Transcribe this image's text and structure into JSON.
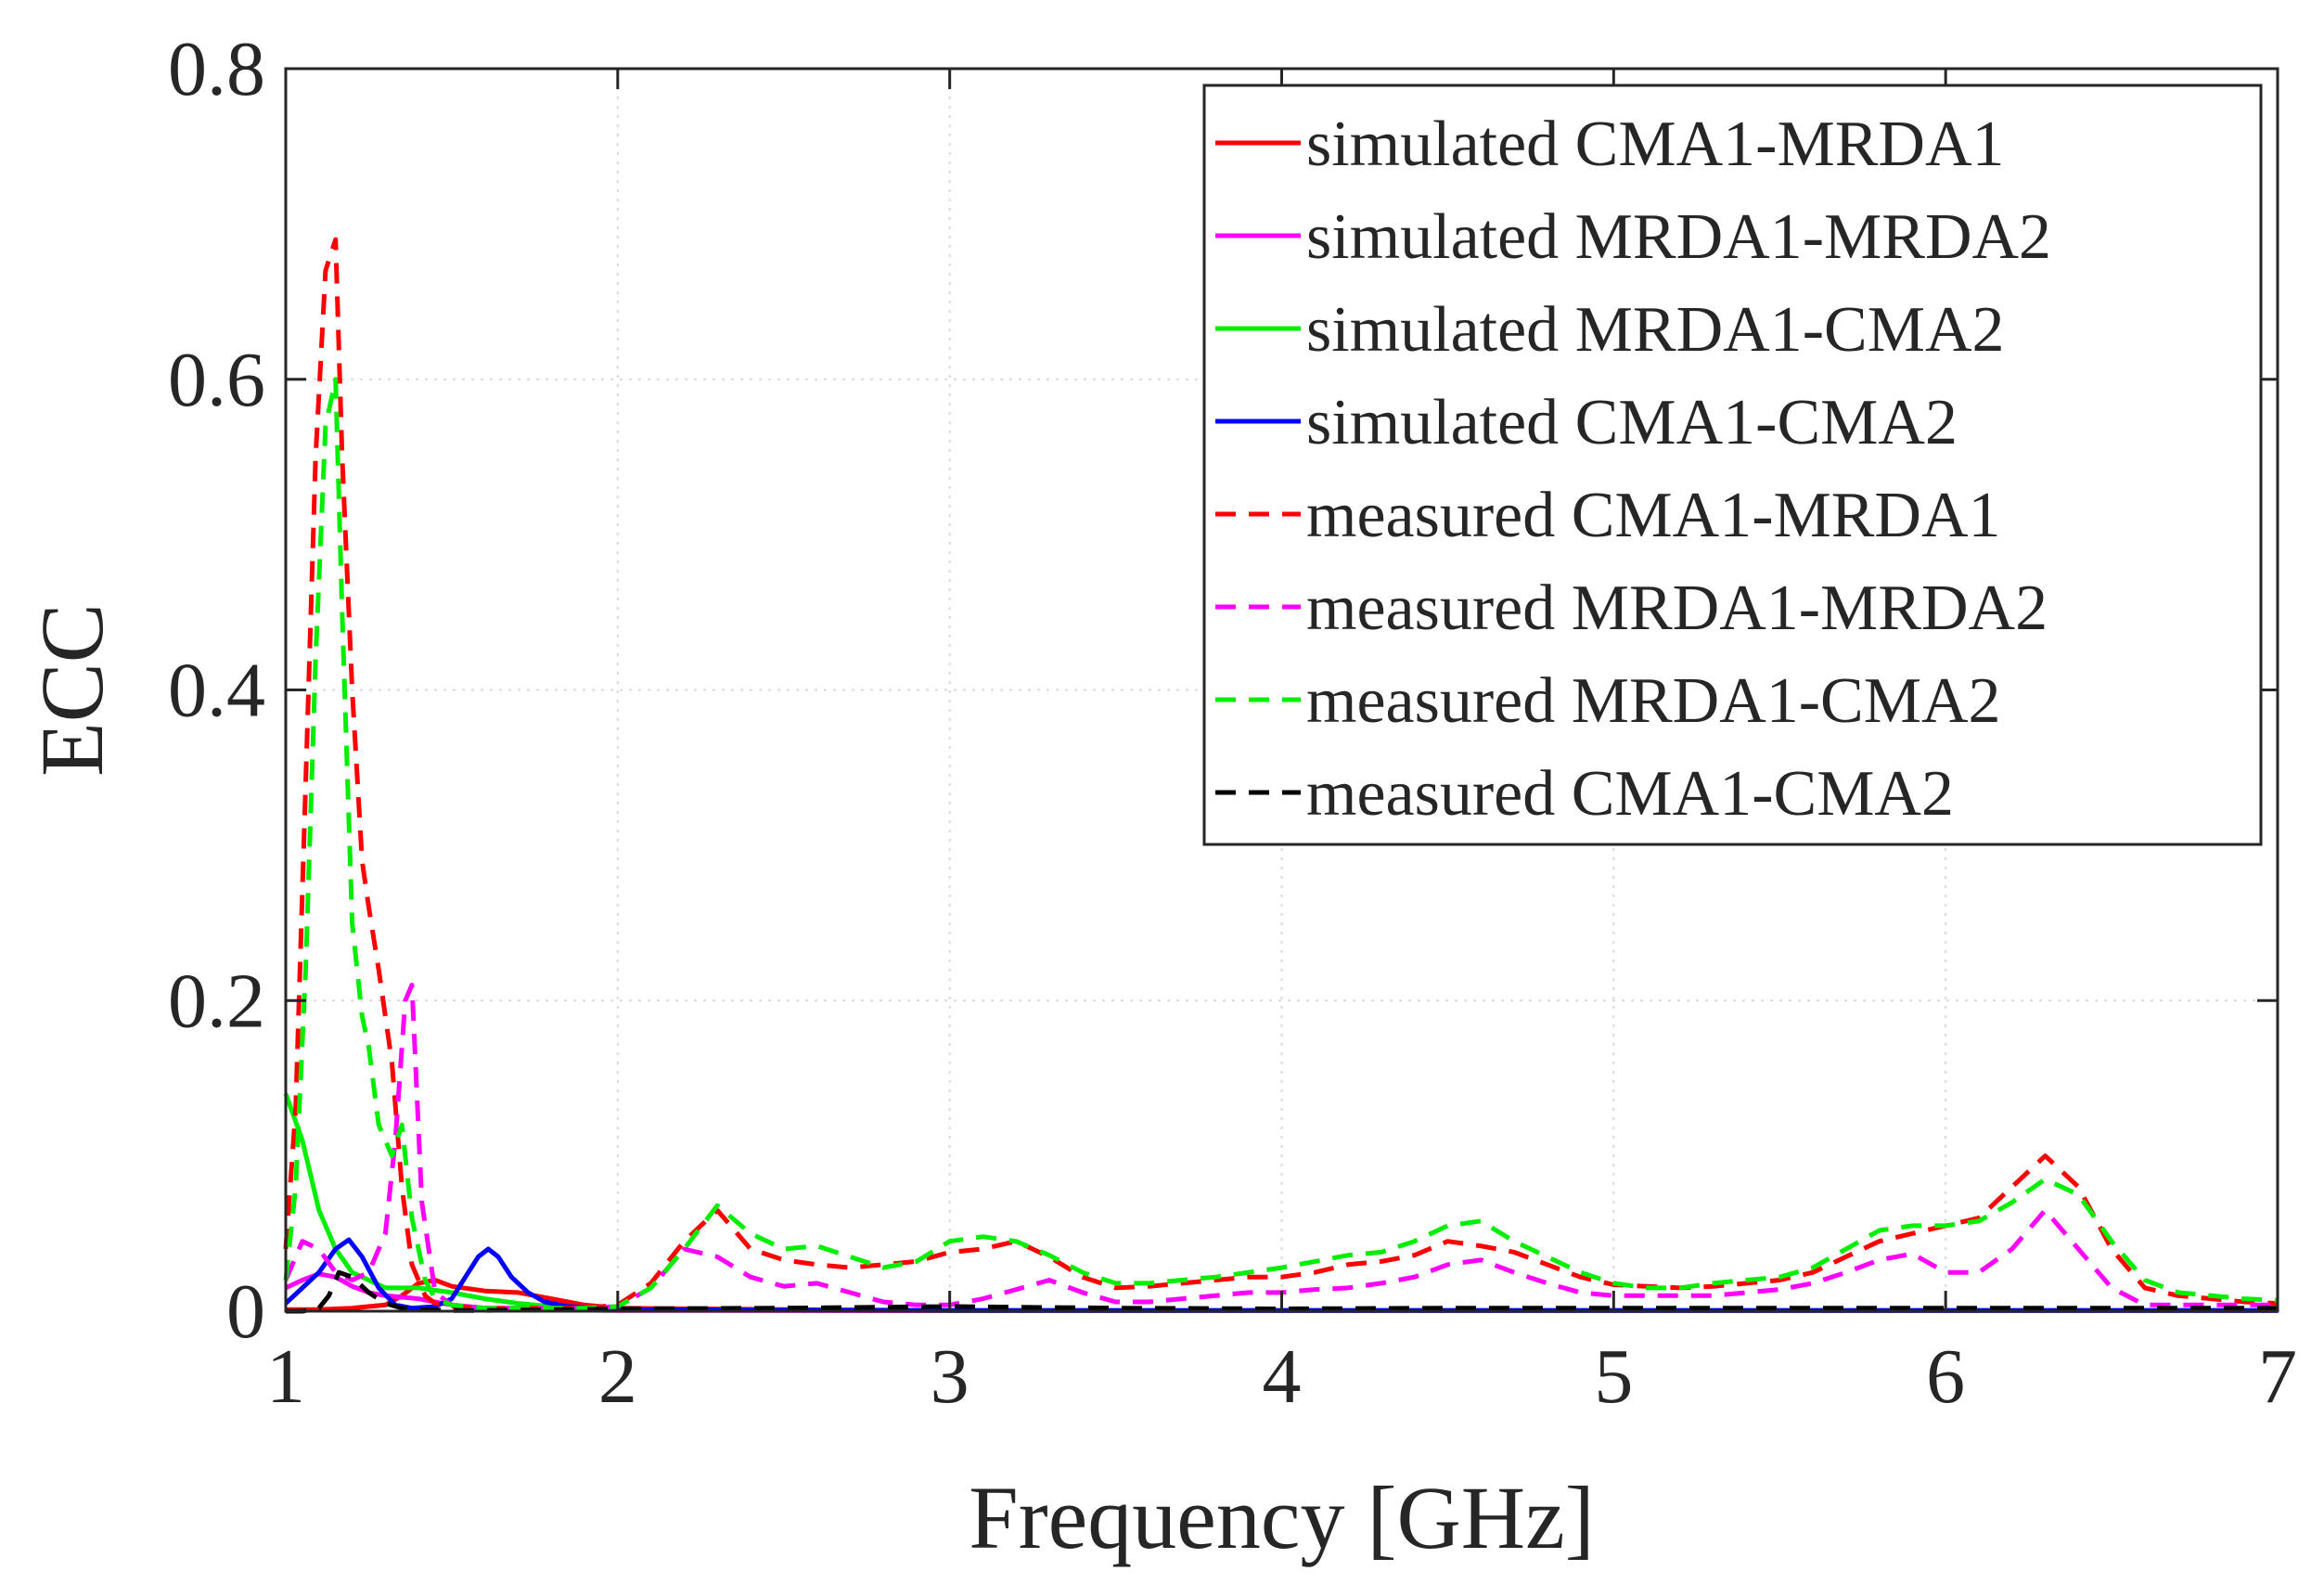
{
  "chart_data": {
    "type": "line",
    "title": "",
    "xlabel": "Frequency [GHz]",
    "ylabel": "ECC",
    "xlim": [
      1,
      7
    ],
    "ylim": [
      0,
      0.8
    ],
    "xticks": [
      1,
      2,
      3,
      4,
      5,
      6,
      7
    ],
    "xtick_labels": [
      "1",
      "2",
      "3",
      "4",
      "5",
      "6",
      "7"
    ],
    "yticks": [
      0,
      0.2,
      0.4,
      0.6,
      0.8
    ],
    "ytick_labels": [
      "0",
      "0.2",
      "0.4",
      "0.6",
      "0.8"
    ],
    "grid": true,
    "legend_position": "top-right",
    "series": [
      {
        "name": "simulated CMA1-MRDA1",
        "color": "#ff0000",
        "style": "solid",
        "x": [
          1.0,
          1.1,
          1.2,
          1.3,
          1.35,
          1.4,
          1.45,
          1.5,
          1.6,
          1.7,
          1.8,
          1.9,
          2.0,
          2.5,
          3.0,
          4.0,
          5.0,
          6.0,
          7.0
        ],
        "y": [
          0.001,
          0.001,
          0.002,
          0.004,
          0.01,
          0.018,
          0.02,
          0.016,
          0.013,
          0.012,
          0.008,
          0.004,
          0.002,
          0.001,
          0.0005,
          0.0005,
          0.0005,
          0.0005,
          0.0005
        ]
      },
      {
        "name": "simulated MRDA1-MRDA2",
        "color": "#ff00ff",
        "style": "solid",
        "x": [
          1.0,
          1.05,
          1.1,
          1.15,
          1.2,
          1.25,
          1.3,
          1.35,
          1.4,
          1.45,
          1.5,
          1.6,
          1.7,
          1.8,
          2.0,
          3.0,
          4.0,
          5.0,
          6.0,
          7.0
        ],
        "y": [
          0.015,
          0.02,
          0.024,
          0.022,
          0.016,
          0.012,
          0.01,
          0.009,
          0.008,
          0.006,
          0.004,
          0.002,
          0.001,
          0.0008,
          0.0005,
          0.0003,
          0.0003,
          0.0003,
          0.0003,
          0.0003
        ]
      },
      {
        "name": "simulated MRDA1-CMA2",
        "color": "#00ee00",
        "style": "solid",
        "x": [
          1.0,
          1.05,
          1.1,
          1.15,
          1.2,
          1.3,
          1.4,
          1.5,
          1.6,
          1.7,
          1.8,
          1.9,
          2.0,
          2.5,
          3.0,
          4.0,
          5.0,
          6.0,
          7.0
        ],
        "y": [
          0.14,
          0.11,
          0.065,
          0.04,
          0.025,
          0.015,
          0.015,
          0.012,
          0.008,
          0.005,
          0.003,
          0.002,
          0.001,
          0.0008,
          0.0005,
          0.0005,
          0.0005,
          0.0005,
          0.0005
        ]
      },
      {
        "name": "simulated CMA1-CMA2",
        "color": "#0000ff",
        "style": "solid",
        "x": [
          1.0,
          1.1,
          1.15,
          1.19,
          1.23,
          1.28,
          1.33,
          1.38,
          1.45,
          1.5,
          1.55,
          1.58,
          1.61,
          1.64,
          1.68,
          1.73,
          1.78,
          1.85,
          2.0,
          3.0,
          4.0,
          5.0,
          6.0,
          7.0
        ],
        "y": [
          0.005,
          0.025,
          0.04,
          0.046,
          0.035,
          0.015,
          0.004,
          0.002,
          0.003,
          0.008,
          0.025,
          0.035,
          0.04,
          0.035,
          0.022,
          0.012,
          0.006,
          0.003,
          0.001,
          0.0005,
          0.0005,
          0.0005,
          0.0005,
          0.0005
        ]
      },
      {
        "name": "measured CMA1-MRDA1",
        "color": "#ff0000",
        "style": "dashed",
        "x": [
          1.0,
          1.03,
          1.06,
          1.09,
          1.12,
          1.15,
          1.17,
          1.2,
          1.23,
          1.25,
          1.28,
          1.32,
          1.35,
          1.38,
          1.42,
          1.45,
          1.5,
          1.6,
          1.7,
          1.8,
          1.9,
          2.0,
          2.1,
          2.2,
          2.3,
          2.4,
          2.5,
          2.6,
          2.7,
          2.8,
          2.9,
          3.0,
          3.1,
          3.2,
          3.3,
          3.4,
          3.5,
          3.6,
          3.7,
          3.8,
          3.9,
          4.0,
          4.1,
          4.2,
          4.3,
          4.4,
          4.5,
          4.6,
          4.7,
          4.8,
          4.9,
          5.0,
          5.1,
          5.2,
          5.3,
          5.4,
          5.5,
          5.6,
          5.7,
          5.8,
          5.9,
          6.0,
          6.1,
          6.2,
          6.3,
          6.4,
          6.5,
          6.6,
          6.7,
          6.8,
          6.9,
          7.0
        ],
        "y": [
          0.04,
          0.13,
          0.34,
          0.55,
          0.67,
          0.69,
          0.55,
          0.4,
          0.29,
          0.26,
          0.22,
          0.16,
          0.08,
          0.03,
          0.01,
          0.005,
          0.003,
          0.002,
          0.002,
          0.002,
          0.002,
          0.004,
          0.018,
          0.045,
          0.065,
          0.04,
          0.033,
          0.03,
          0.028,
          0.03,
          0.032,
          0.038,
          0.04,
          0.045,
          0.035,
          0.022,
          0.015,
          0.016,
          0.018,
          0.02,
          0.022,
          0.022,
          0.025,
          0.03,
          0.032,
          0.036,
          0.045,
          0.042,
          0.038,
          0.03,
          0.022,
          0.017,
          0.016,
          0.015,
          0.016,
          0.018,
          0.02,
          0.025,
          0.035,
          0.045,
          0.05,
          0.055,
          0.06,
          0.08,
          0.1,
          0.08,
          0.04,
          0.015,
          0.01,
          0.008,
          0.006,
          0.005
        ]
      },
      {
        "name": "measured MRDA1-MRDA2",
        "color": "#ff00ff",
        "style": "dashed",
        "x": [
          1.0,
          1.05,
          1.1,
          1.15,
          1.2,
          1.25,
          1.3,
          1.33,
          1.36,
          1.38,
          1.41,
          1.45,
          1.5,
          1.6,
          1.7,
          1.8,
          1.9,
          2.0,
          2.1,
          2.2,
          2.3,
          2.4,
          2.5,
          2.6,
          2.7,
          2.8,
          2.9,
          3.0,
          3.1,
          3.2,
          3.3,
          3.4,
          3.5,
          3.6,
          3.7,
          3.8,
          3.9,
          4.0,
          4.1,
          4.2,
          4.3,
          4.4,
          4.5,
          4.6,
          4.7,
          4.8,
          4.9,
          5.0,
          5.1,
          5.2,
          5.3,
          5.4,
          5.5,
          5.6,
          5.7,
          5.8,
          5.9,
          6.0,
          6.1,
          6.2,
          6.3,
          6.4,
          6.5,
          6.6,
          6.7,
          6.8,
          6.9,
          7.0
        ],
        "y": [
          0.02,
          0.045,
          0.04,
          0.025,
          0.02,
          0.025,
          0.05,
          0.11,
          0.2,
          0.21,
          0.07,
          0.012,
          0.004,
          0.002,
          0.002,
          0.002,
          0.002,
          0.003,
          0.015,
          0.04,
          0.035,
          0.022,
          0.016,
          0.018,
          0.012,
          0.006,
          0.004,
          0.004,
          0.008,
          0.014,
          0.02,
          0.012,
          0.006,
          0.006,
          0.008,
          0.01,
          0.012,
          0.012,
          0.014,
          0.015,
          0.018,
          0.022,
          0.03,
          0.033,
          0.025,
          0.018,
          0.012,
          0.01,
          0.01,
          0.01,
          0.01,
          0.012,
          0.014,
          0.018,
          0.025,
          0.033,
          0.037,
          0.025,
          0.025,
          0.04,
          0.065,
          0.04,
          0.015,
          0.004,
          0.004,
          0.004,
          0.004,
          0.004
        ]
      },
      {
        "name": "measured MRDA1-CMA2",
        "color": "#00ee00",
        "style": "dashed",
        "x": [
          1.0,
          1.03,
          1.06,
          1.09,
          1.12,
          1.15,
          1.17,
          1.2,
          1.23,
          1.25,
          1.28,
          1.32,
          1.35,
          1.38,
          1.42,
          1.45,
          1.5,
          1.6,
          1.7,
          1.8,
          1.9,
          2.0,
          2.1,
          2.2,
          2.3,
          2.4,
          2.5,
          2.6,
          2.7,
          2.8,
          2.9,
          3.0,
          3.1,
          3.2,
          3.3,
          3.4,
          3.5,
          3.6,
          3.7,
          3.8,
          3.9,
          4.0,
          4.1,
          4.2,
          4.3,
          4.4,
          4.5,
          4.6,
          4.7,
          4.8,
          4.9,
          5.0,
          5.1,
          5.2,
          5.3,
          5.4,
          5.5,
          5.6,
          5.7,
          5.8,
          5.9,
          6.0,
          6.1,
          6.2,
          6.3,
          6.4,
          6.5,
          6.6,
          6.7,
          6.8,
          6.9,
          7.0
        ],
        "y": [
          0.02,
          0.08,
          0.22,
          0.42,
          0.57,
          0.6,
          0.45,
          0.25,
          0.19,
          0.17,
          0.12,
          0.1,
          0.12,
          0.06,
          0.02,
          0.008,
          0.004,
          0.002,
          0.002,
          0.002,
          0.002,
          0.003,
          0.015,
          0.04,
          0.068,
          0.05,
          0.04,
          0.042,
          0.035,
          0.028,
          0.032,
          0.045,
          0.048,
          0.045,
          0.036,
          0.025,
          0.018,
          0.018,
          0.02,
          0.022,
          0.025,
          0.028,
          0.032,
          0.036,
          0.038,
          0.045,
          0.055,
          0.058,
          0.045,
          0.035,
          0.025,
          0.018,
          0.015,
          0.015,
          0.018,
          0.02,
          0.022,
          0.028,
          0.04,
          0.052,
          0.055,
          0.055,
          0.058,
          0.07,
          0.085,
          0.075,
          0.045,
          0.02,
          0.012,
          0.01,
          0.008,
          0.007
        ]
      },
      {
        "name": "measured CMA1-CMA2",
        "color": "#000000",
        "style": "dashed",
        "x": [
          1.0,
          1.05,
          1.1,
          1.13,
          1.16,
          1.2,
          1.25,
          1.3,
          1.35,
          1.4,
          1.5,
          1.6,
          2.0,
          2.5,
          3.0,
          3.5,
          4.0,
          4.5,
          5.0,
          5.5,
          6.0,
          6.5,
          7.0
        ],
        "y": [
          0.0,
          0.0,
          0.002,
          0.01,
          0.025,
          0.022,
          0.012,
          0.005,
          0.002,
          0.001,
          0.0005,
          0.0005,
          0.0015,
          0.002,
          0.003,
          0.002,
          0.0015,
          0.002,
          0.002,
          0.002,
          0.002,
          0.002,
          0.002
        ]
      }
    ]
  }
}
